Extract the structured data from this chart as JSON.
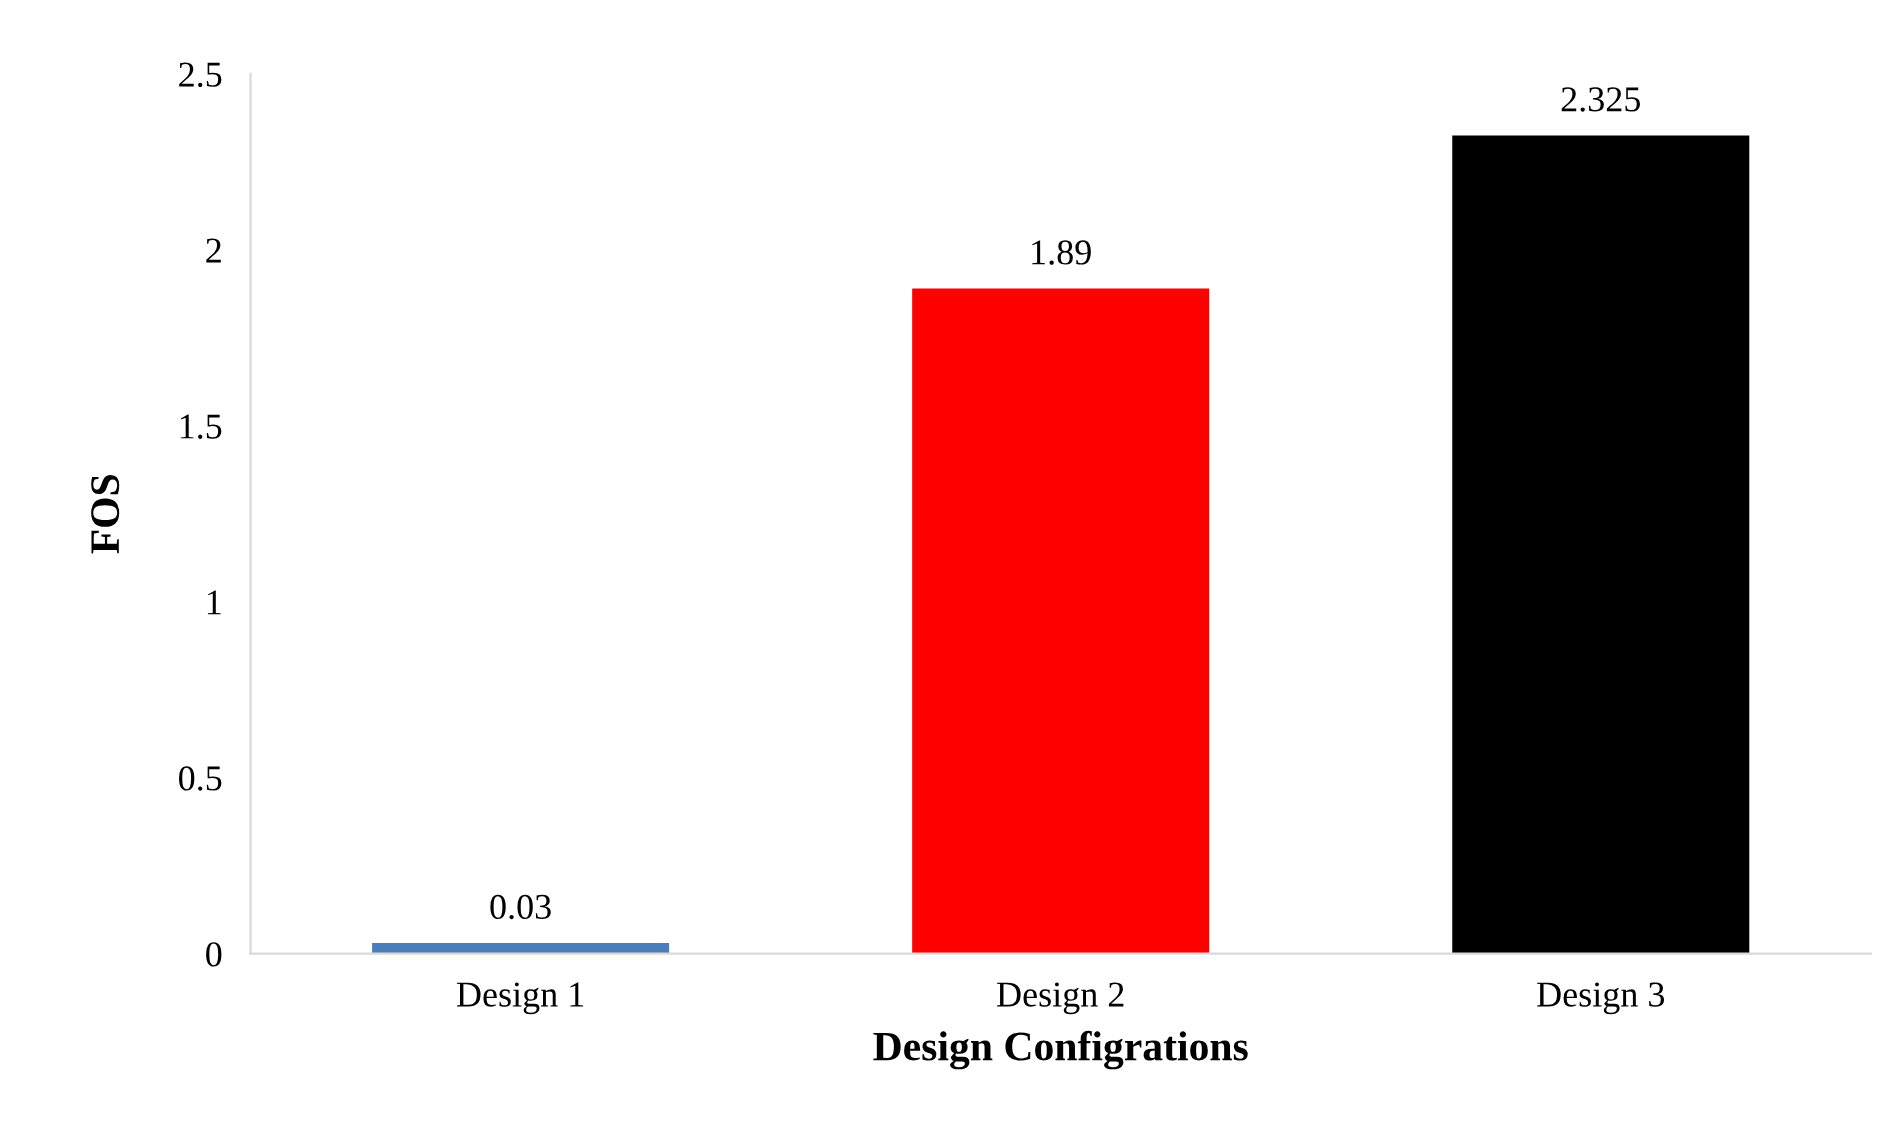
{
  "chart_data": {
    "type": "bar",
    "xlabel": "Design Configrations",
    "ylabel": "FOS",
    "categories": [
      "Design 1",
      "Design 2",
      "Design 3"
    ],
    "values": [
      0.03,
      1.89,
      2.325
    ],
    "colors": [
      "#4a7ebb",
      "#ff0000",
      "#000000"
    ],
    "ylim": [
      0,
      2.5
    ],
    "yticks": [
      0,
      0.5,
      1,
      1.5,
      2,
      2.5
    ],
    "data_labels": true,
    "grid": false,
    "legend": false
  }
}
